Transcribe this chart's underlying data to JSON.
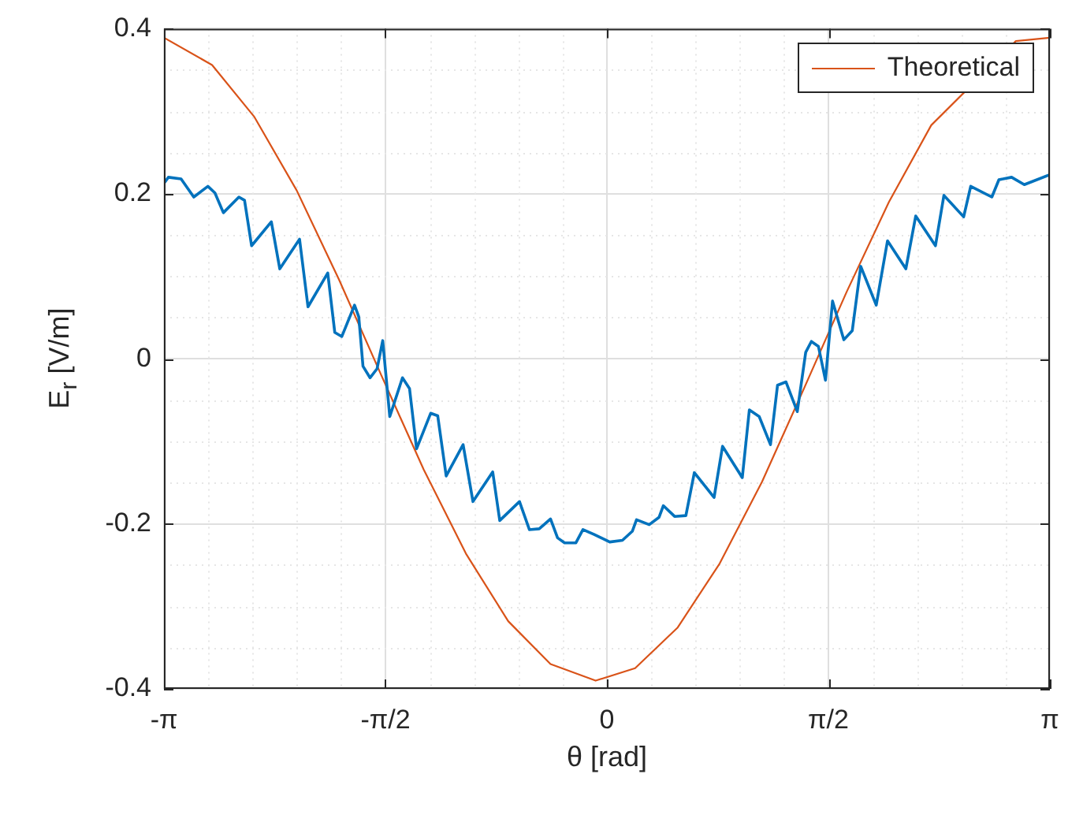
{
  "chart_data": {
    "type": "line",
    "xlabel": "θ [rad]",
    "ylabel": "E$_{r}$ [V/m]",
    "xlim": [
      -3.14159,
      3.14159
    ],
    "ylim": [
      -0.4,
      0.4
    ],
    "xticks": [
      {
        "value": -3.14159,
        "label": "-π"
      },
      {
        "value": -1.5708,
        "label": "-π/2"
      },
      0,
      {
        "value": 1.5708,
        "label": "π/2"
      },
      {
        "value": 3.14159,
        "label": "π"
      }
    ],
    "yticks": [
      -0.4,
      -0.2,
      0,
      0.2,
      0.4
    ],
    "grid": true,
    "legend": "top right",
    "marker": "none",
    "line_style": "solid",
    "series": [
      {
        "color": "#0072bd",
        "x": [
          -3.14,
          -3.11,
          -3.02,
          -2.93,
          -2.83,
          -2.78,
          -2.72,
          -2.61,
          -2.57,
          -2.52,
          -2.38,
          -2.32,
          -2.18,
          -2.12,
          -1.98,
          -1.93,
          -1.88,
          -1.79,
          -1.76,
          -1.73,
          -1.68,
          -1.63,
          -1.59,
          -1.54,
          -1.45,
          -1.4,
          -1.35,
          -1.25,
          -1.2,
          -1.14,
          -1.02,
          -0.95,
          -0.81,
          -0.76,
          -0.62,
          -0.55,
          -0.48,
          -0.4,
          -0.35,
          -0.3,
          -0.22,
          -0.17,
          -0.09,
          0.02,
          0.11,
          0.18,
          0.21,
          0.3,
          0.37,
          0.4,
          0.48,
          0.56,
          0.62,
          0.76,
          0.82,
          0.96,
          1.01,
          1.08,
          1.16,
          1.21,
          1.27,
          1.35,
          1.41,
          1.45,
          1.5,
          1.55,
          1.6,
          1.68,
          1.74,
          1.8,
          1.91,
          1.99,
          2.12,
          2.19,
          2.33,
          2.39,
          2.53,
          2.58,
          2.73,
          2.78,
          2.87,
          2.96,
          3.14
        ],
        "values": [
          0.213,
          0.22,
          0.218,
          0.196,
          0.209,
          0.201,
          0.177,
          0.196,
          0.192,
          0.137,
          0.166,
          0.109,
          0.145,
          0.063,
          0.104,
          0.032,
          0.027,
          0.065,
          0.051,
          -0.009,
          -0.023,
          -0.012,
          0.022,
          -0.07,
          -0.023,
          -0.036,
          -0.109,
          -0.066,
          -0.069,
          -0.142,
          -0.104,
          -0.173,
          -0.137,
          -0.196,
          -0.173,
          -0.207,
          -0.206,
          -0.194,
          -0.217,
          -0.223,
          -0.223,
          -0.207,
          -0.213,
          -0.222,
          -0.22,
          -0.209,
          -0.195,
          -0.201,
          -0.192,
          -0.178,
          -0.191,
          -0.19,
          -0.138,
          -0.168,
          -0.106,
          -0.144,
          -0.062,
          -0.07,
          -0.104,
          -0.032,
          -0.028,
          -0.064,
          0.008,
          0.021,
          0.015,
          -0.026,
          0.07,
          0.023,
          0.034,
          0.112,
          0.065,
          0.143,
          0.109,
          0.173,
          0.137,
          0.198,
          0.172,
          0.209,
          0.196,
          0.217,
          0.22,
          0.211,
          0.223
        ]
      },
      {
        "name": "Theoretical",
        "color": "#d95319",
        "x": [
          -3.14,
          -2.8,
          -2.5,
          -2.2,
          -1.9,
          -1.6,
          -1.3,
          -1.0,
          -0.7,
          -0.4,
          -0.08,
          0.2,
          0.5,
          0.8,
          1.1,
          1.4,
          1.7,
          2.0,
          2.3,
          2.6,
          2.9,
          3.14
        ],
        "values": [
          0.389,
          0.356,
          0.293,
          0.204,
          0.096,
          -0.02,
          -0.134,
          -0.236,
          -0.318,
          -0.37,
          -0.39,
          -0.375,
          -0.326,
          -0.248,
          -0.149,
          -0.035,
          0.081,
          0.19,
          0.283,
          null,
          0.385,
          0.389
        ]
      }
    ]
  }
}
